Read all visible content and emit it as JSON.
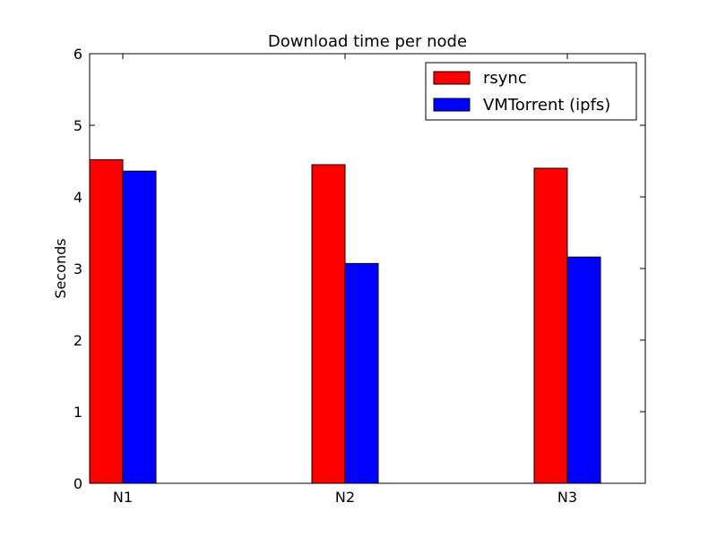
{
  "chart_data": {
    "type": "bar",
    "title": "Download time per node",
    "xlabel": "",
    "ylabel": "Seconds",
    "categories": [
      "N1",
      "N2",
      "N3"
    ],
    "series": [
      {
        "name": "rsync",
        "color": "#ff0000",
        "values": [
          4.52,
          4.45,
          4.4
        ]
      },
      {
        "name": "VMTorrent (ipfs)",
        "color": "#0000ff",
        "values": [
          4.36,
          3.07,
          3.16
        ]
      }
    ],
    "ylim": [
      0,
      6
    ],
    "yticks": [
      "0",
      "1",
      "2",
      "3",
      "4",
      "5",
      "6"
    ],
    "grid": false,
    "legend_position": "top-right"
  }
}
